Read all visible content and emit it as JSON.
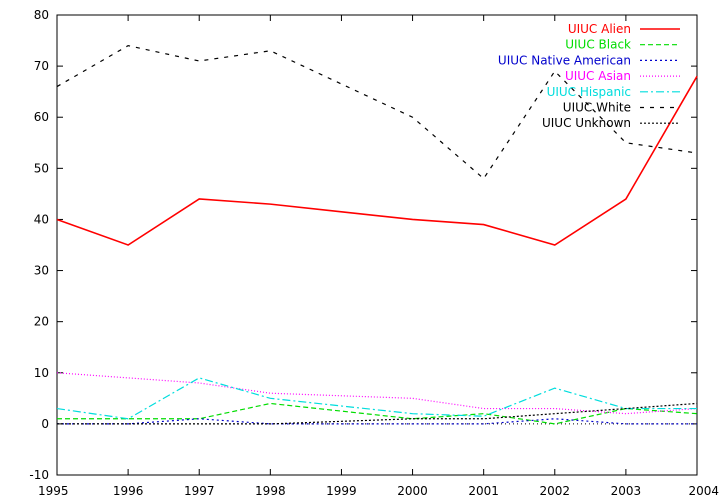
{
  "chart_data": {
    "type": "line",
    "title": "",
    "xlabel": "",
    "ylabel": "",
    "x": [
      1995,
      1996,
      1997,
      1998,
      1999,
      2000,
      2001,
      2002,
      2003,
      2004
    ],
    "xlim": [
      1995,
      2004
    ],
    "ylim": [
      -10,
      80
    ],
    "x_ticks": [
      "1995",
      "1996",
      "1997",
      "1998",
      "1999",
      "2000",
      "2001",
      "2002",
      "2003",
      "2004"
    ],
    "y_ticks": [
      "-10",
      "0",
      "10",
      "20",
      "30",
      "40",
      "50",
      "60",
      "70",
      "80"
    ],
    "grid": false,
    "legend_position": "top-right",
    "series": [
      {
        "name": "UIUC Alien",
        "color": "#ff0000",
        "dash": "solid",
        "values": [
          40,
          35,
          44,
          43,
          41.5,
          40,
          39,
          35,
          44,
          68
        ]
      },
      {
        "name": "UIUC Black",
        "color": "#00dd00",
        "dash": "dashed",
        "values": [
          1,
          1,
          1,
          4,
          2.5,
          1,
          2,
          0,
          3,
          2
        ]
      },
      {
        "name": "UIUC Native American",
        "color": "#0000cc",
        "dash": "dotted",
        "values": [
          0,
          0,
          1,
          0,
          0,
          0,
          0,
          1,
          0,
          0
        ]
      },
      {
        "name": "UIUC Asian",
        "color": "#ff00ff",
        "dash": "fine-dotted",
        "values": [
          10,
          9,
          8,
          6,
          5.5,
          5,
          3,
          3,
          2,
          3
        ]
      },
      {
        "name": "UIUC Hispanic",
        "color": "#00dddd",
        "dash": "dash-dot",
        "values": [
          3,
          1,
          9,
          5,
          3.5,
          2,
          1.5,
          7,
          3,
          3
        ]
      },
      {
        "name": "UIUC White",
        "color": "#000000",
        "dash": "long-dashed",
        "values": [
          66,
          74,
          71,
          73,
          66.5,
          60,
          48,
          69,
          55,
          53
        ]
      },
      {
        "name": "UIUC Unknown",
        "color": "#000000",
        "dash": "dense-dotted",
        "values": [
          0,
          0,
          0,
          0,
          0.5,
          1,
          1,
          2,
          3,
          4
        ]
      }
    ]
  }
}
